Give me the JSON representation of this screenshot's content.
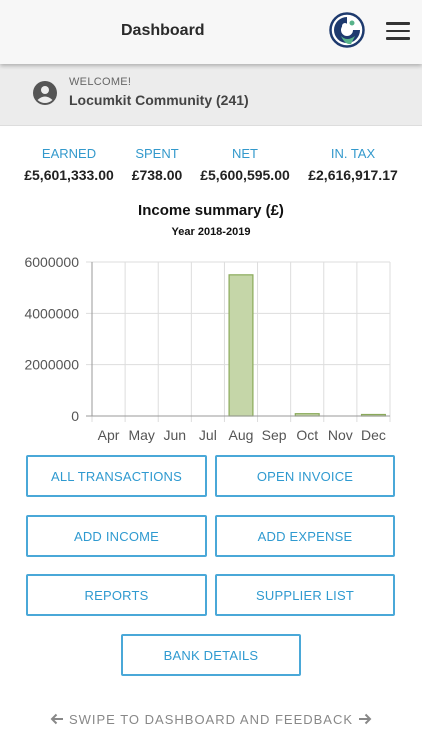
{
  "header": {
    "title": "Dashboard",
    "logo_icon": "locumkit-logo",
    "menu_icon": "hamburger-menu-icon"
  },
  "welcome": {
    "label": "WELCOME!",
    "name": "Locumkit Community (241)",
    "icon": "user-icon"
  },
  "stats": [
    {
      "label": "EARNED",
      "value": "£5,601,333.00"
    },
    {
      "label": "SPENT",
      "value": "£738.00"
    },
    {
      "label": "NET",
      "value": "£5,600,595.00"
    },
    {
      "label": "IN. TAX",
      "value": "£2,616,917.17"
    }
  ],
  "chart_title": "Income summary (£)",
  "chart_subtitle": "Year 2018-2019",
  "chart_data": {
    "type": "bar",
    "categories": [
      "Apr",
      "May",
      "Jun",
      "Jul",
      "Aug",
      "Sep",
      "Oct",
      "Nov",
      "Dec"
    ],
    "values": [
      0,
      0,
      0,
      0,
      5500000,
      0,
      90000,
      0,
      8000
    ],
    "ylim": [
      0,
      6000000
    ],
    "yticks": [
      "6000000",
      "4000000",
      "2000000",
      "0"
    ],
    "ytick_values": [
      6000000,
      4000000,
      2000000,
      0
    ],
    "grid": true,
    "bar_color": "#c5d6a8",
    "bar_border": "#8aaa5a"
  },
  "buttons": {
    "all_transactions": "ALL TRANSACTIONS",
    "open_invoice": "OPEN INVOICE",
    "add_income": "ADD INCOME",
    "add_expense": "ADD EXPENSE",
    "reports": "REPORTS",
    "supplier_list": "SUPPLIER LIST",
    "bank_details": "BANK DETAILS"
  },
  "footer": {
    "text": "SWIPE TO DASHBOARD AND FEEDBACK"
  },
  "colors": {
    "accent": "#3399cc",
    "button_border": "#4aa8d8"
  }
}
